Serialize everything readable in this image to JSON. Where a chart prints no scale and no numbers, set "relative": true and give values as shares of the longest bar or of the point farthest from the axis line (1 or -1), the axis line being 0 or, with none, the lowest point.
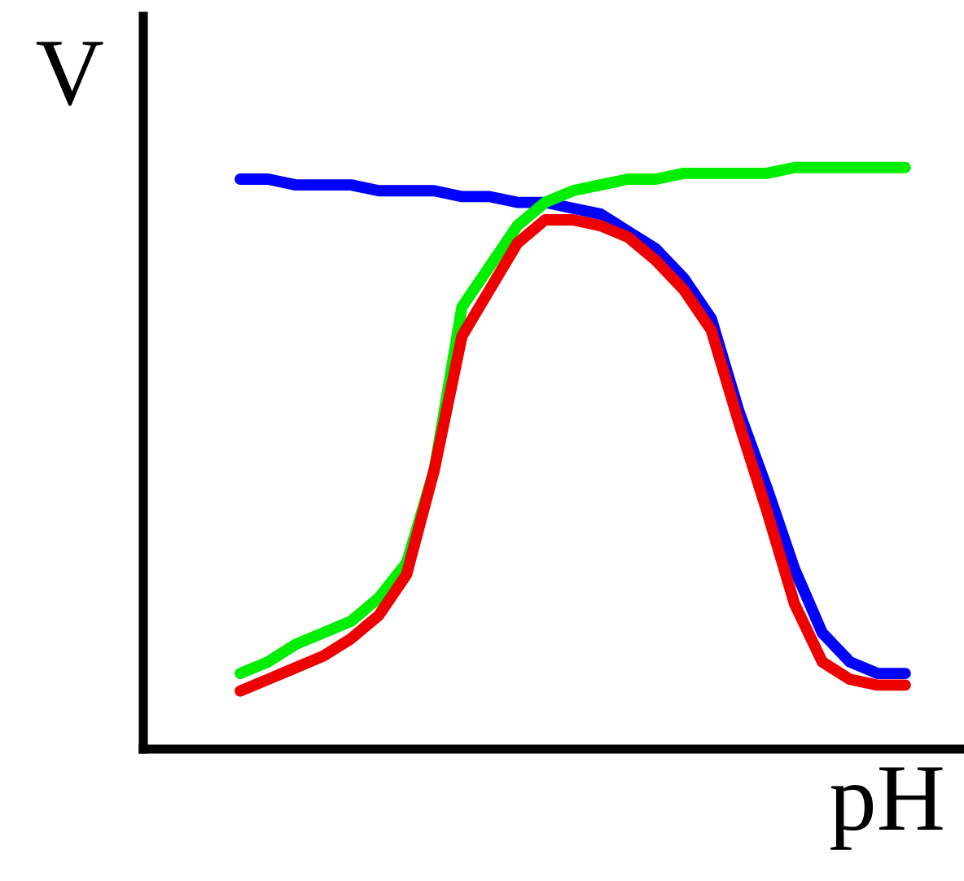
{
  "chart_data": {
    "type": "line",
    "relative": true,
    "xlabel": "pH",
    "ylabel": "V",
    "marker": "none",
    "line_style": "solid",
    "categories": [
      null,
      null,
      null,
      null,
      null,
      null,
      null,
      null,
      null,
      null,
      null,
      null,
      null,
      null,
      null,
      null,
      null,
      null,
      null,
      null,
      null,
      null,
      null,
      null,
      null
    ],
    "series": [
      {
        "color": "#0000ff",
        "values": [
          0.98,
          0.98,
          0.97,
          0.97,
          0.97,
          0.96,
          0.96,
          0.96,
          0.95,
          0.95,
          0.94,
          0.94,
          0.93,
          0.92,
          0.89,
          0.86,
          0.81,
          0.74,
          0.58,
          0.45,
          0.31,
          0.2,
          0.15,
          0.13,
          0.13
        ]
      },
      {
        "color": "#00ee00",
        "values": [
          0.13,
          0.15,
          0.18,
          0.2,
          0.22,
          0.26,
          0.32,
          0.48,
          0.76,
          0.83,
          0.9,
          0.94,
          0.96,
          0.97,
          0.98,
          0.98,
          0.99,
          0.99,
          0.99,
          0.99,
          1.0,
          1.0,
          1.0,
          1.0,
          1.0
        ]
      },
      {
        "color": "#ee0000",
        "values": [
          0.1,
          0.12,
          0.14,
          0.16,
          0.19,
          0.23,
          0.3,
          0.48,
          0.71,
          0.79,
          0.87,
          0.91,
          0.91,
          0.9,
          0.88,
          0.84,
          0.79,
          0.72,
          0.56,
          0.41,
          0.25,
          0.15,
          0.12,
          0.11,
          0.11
        ]
      }
    ]
  }
}
